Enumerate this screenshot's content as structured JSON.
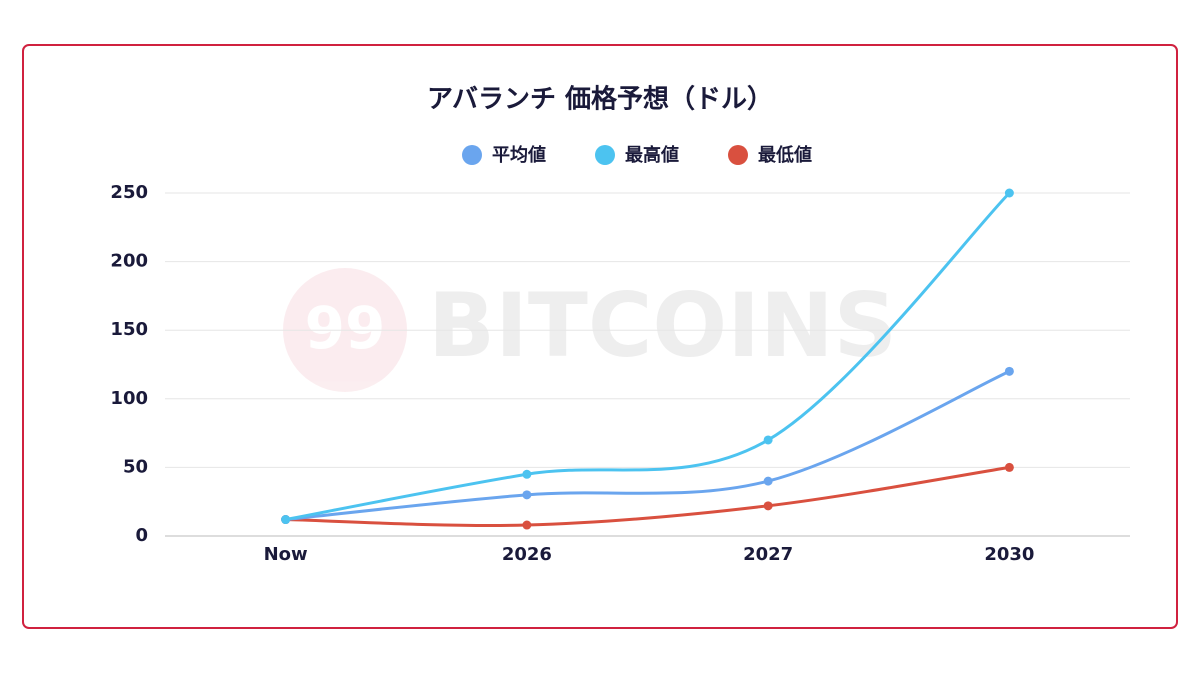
{
  "chart_data": {
    "type": "line",
    "title": "アバランチ 価格予想（ドル）",
    "categories": [
      "Now",
      "2026",
      "2027",
      "2030"
    ],
    "series": [
      {
        "name": "平均値",
        "color": "#6aa5ee",
        "values": [
          12,
          30,
          40,
          120
        ]
      },
      {
        "name": "最高値",
        "color": "#4cc3f0",
        "values": [
          12,
          45,
          70,
          250
        ]
      },
      {
        "name": "最低値",
        "color": "#d9503f",
        "values": [
          12,
          8,
          22,
          50
        ]
      }
    ],
    "ylim": [
      0,
      250
    ],
    "yticks": [
      0,
      50,
      100,
      150,
      200,
      250
    ],
    "grid": true,
    "legend": "top",
    "smooth": true
  },
  "watermark": {
    "badge": "99",
    "text": "BITCOINS"
  }
}
